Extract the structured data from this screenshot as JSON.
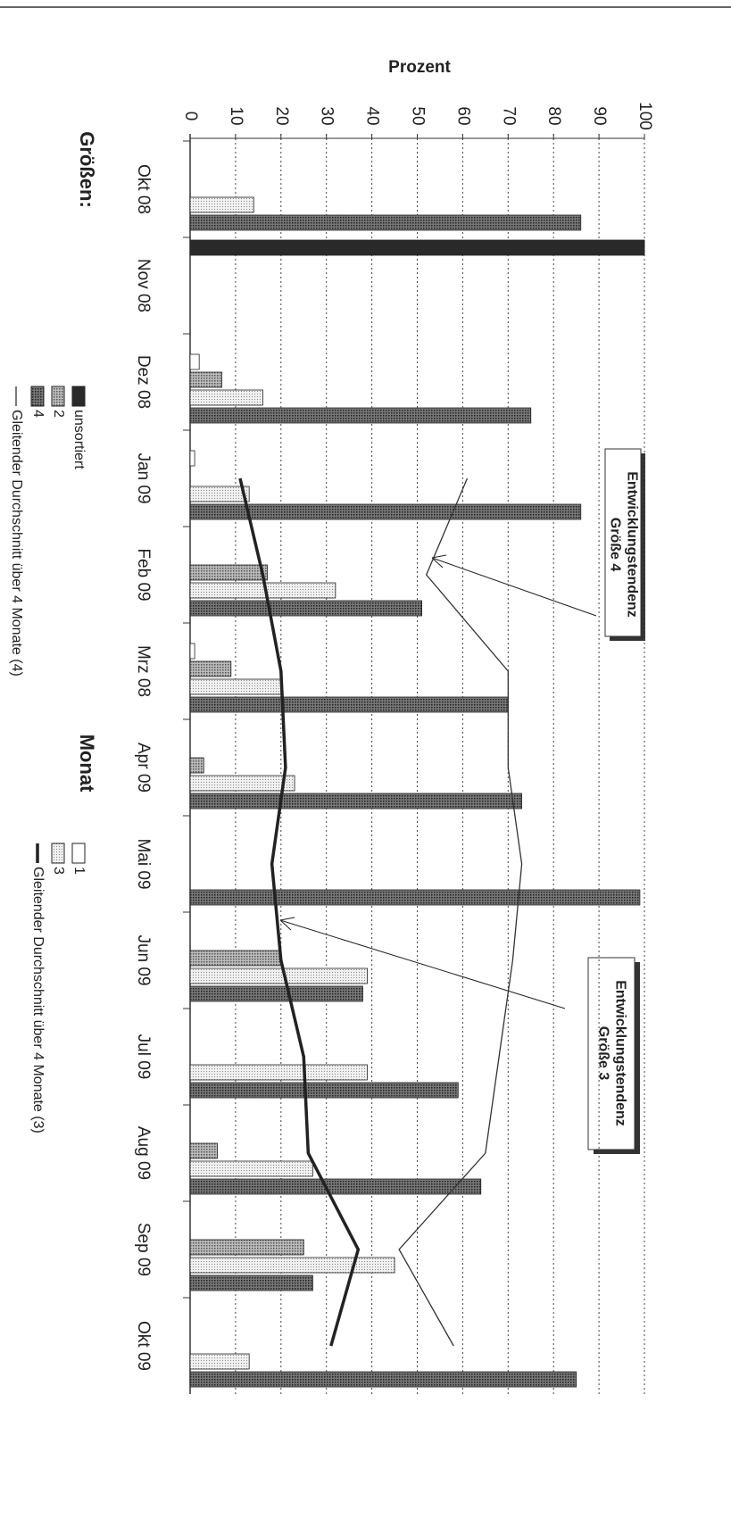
{
  "chart_data": {
    "type": "bar",
    "orientation": "horizontal",
    "title": "Größen:",
    "x_label": "Monat",
    "y_label": "Prozent",
    "categories": [
      "Okt 08",
      "Nov 08",
      "Dez 08",
      "Jan 09",
      "Feb 09",
      "Mrz 08",
      "Apr 09",
      "Mai 09",
      "Jun 09",
      "Jul 09",
      "Aug 09",
      "Sep 09",
      "Okt 09"
    ],
    "ylim": [
      0,
      100
    ],
    "yticks": [
      0,
      10,
      20,
      30,
      40,
      50,
      60,
      70,
      80,
      90,
      100
    ],
    "grid": true,
    "series": [
      {
        "name": "unsortiert",
        "color": "#2a2a2a",
        "values": [
          null,
          100,
          null,
          null,
          null,
          null,
          null,
          null,
          null,
          null,
          null,
          null,
          null
        ]
      },
      {
        "name": "1",
        "color": "#ffffff",
        "values": [
          null,
          null,
          2,
          1,
          null,
          1,
          null,
          null,
          null,
          null,
          null,
          null,
          null
        ]
      },
      {
        "name": "2",
        "color": "#8a8a8a",
        "values": [
          null,
          null,
          7,
          null,
          17,
          9,
          3,
          null,
          20,
          null,
          6,
          25,
          null
        ]
      },
      {
        "name": "3",
        "color": "#d8d8d8",
        "values": [
          14,
          null,
          16,
          13,
          32,
          20,
          23,
          null,
          39,
          39,
          27,
          45,
          13
        ]
      },
      {
        "name": "4",
        "color": "#555555",
        "values": [
          86,
          null,
          75,
          86,
          51,
          70,
          73,
          99,
          38,
          59,
          64,
          27,
          85
        ]
      },
      {
        "name": "Gleitender Durchschnitt über 4 Monate (3)",
        "type": "line",
        "color": "#222222",
        "values": [
          null,
          null,
          null,
          11,
          16,
          20,
          21,
          18,
          20,
          25,
          26,
          37,
          31
        ]
      },
      {
        "name": "Gleitender Durchschnitt über 4 Monate (4)",
        "type": "line",
        "color": "#333333",
        "values": [
          null,
          null,
          null,
          61,
          52,
          70,
          70,
          73,
          71,
          68,
          65,
          46,
          58
        ]
      }
    ],
    "annotations": [
      "Entwicklungstendenz Größe 4",
      "Entwicklungstendenz Größe 3"
    ]
  }
}
